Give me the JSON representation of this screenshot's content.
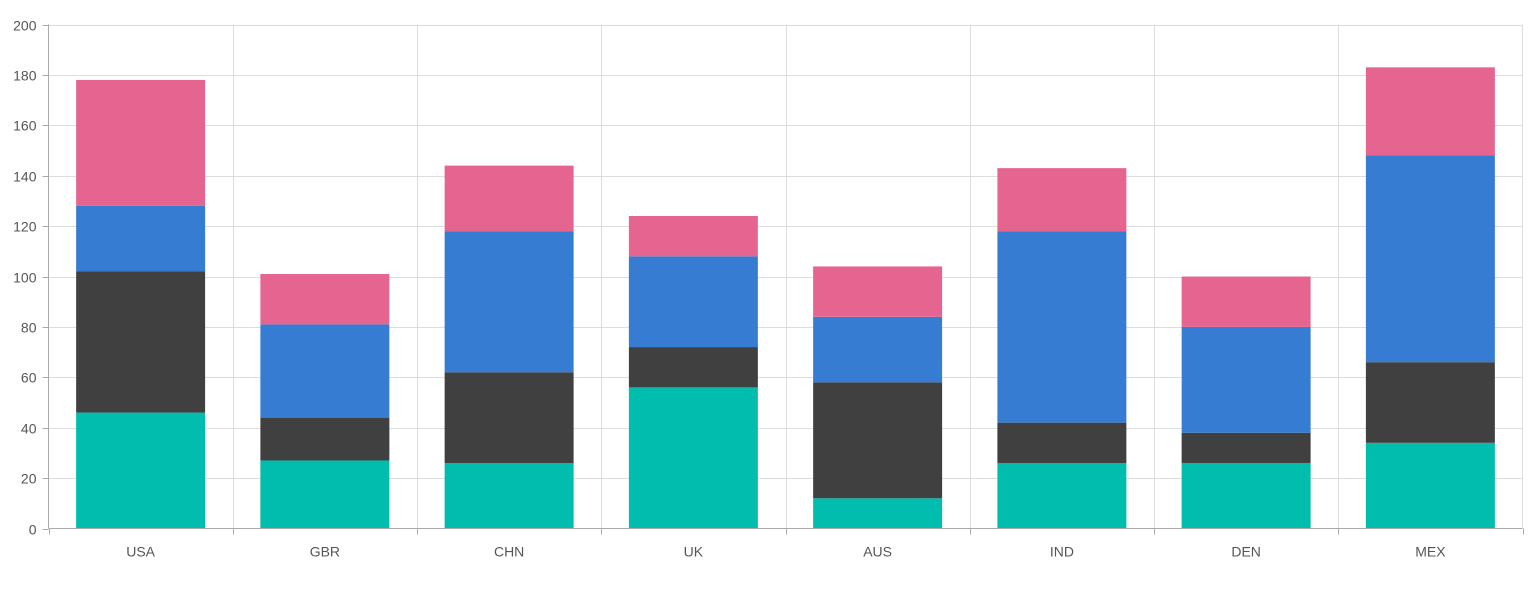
{
  "chart_data": {
    "type": "bar",
    "stacked": true,
    "categories": [
      "USA",
      "GBR",
      "CHN",
      "UK",
      "AUS",
      "IND",
      "DEN",
      "MEX"
    ],
    "series": [
      {
        "color": "#00bdae",
        "values": [
          46,
          27,
          26,
          56,
          12,
          26,
          26,
          34
        ]
      },
      {
        "color": "#404041",
        "values": [
          56,
          17,
          36,
          16,
          46,
          16,
          12,
          32
        ]
      },
      {
        "color": "#357cd2",
        "values": [
          26,
          37,
          56,
          36,
          26,
          76,
          42,
          82
        ]
      },
      {
        "color": "#e56590",
        "values": [
          50,
          20,
          26,
          16,
          20,
          25,
          20,
          35
        ]
      }
    ],
    "ylim": [
      0,
      200
    ],
    "y_ticks": [
      0,
      20,
      40,
      60,
      80,
      100,
      120,
      140,
      160,
      180,
      200
    ],
    "grid": true,
    "legend": "none",
    "title": "",
    "xlabel": "",
    "ylabel": ""
  }
}
